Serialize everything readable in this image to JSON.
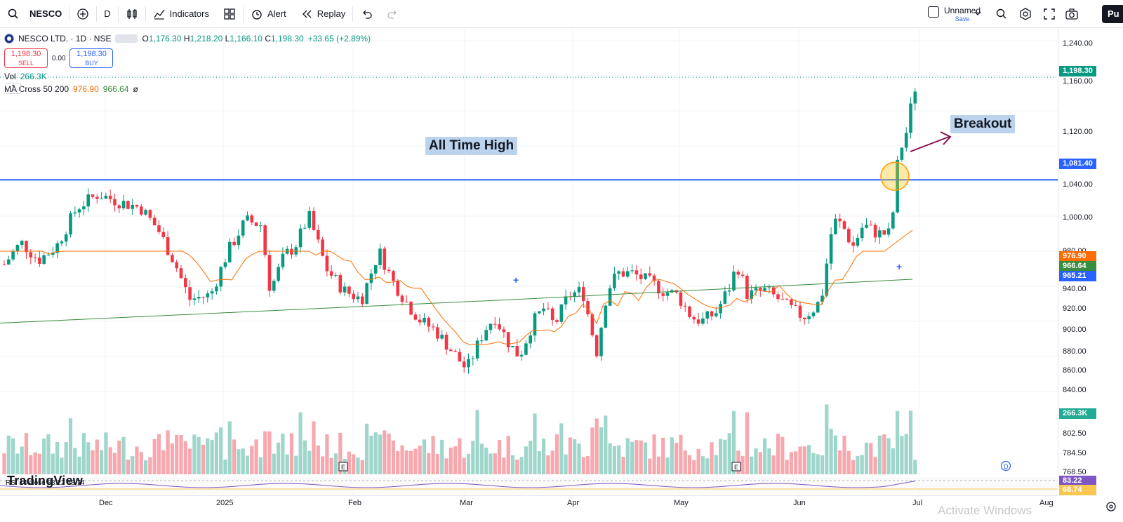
{
  "toolbar": {
    "symbol": "NESCO",
    "interval": "D",
    "indicators_label": "Indicators",
    "alert_label": "Alert",
    "replay_label": "Replay",
    "layout_name": "Unnamed",
    "save_label": "Save",
    "publish_label": "Pu"
  },
  "legend": {
    "title": "NESCO LTD. · 1D · NSE",
    "ohlc": [
      {
        "k": "O",
        "v": "1,176.30"
      },
      {
        "k": "H",
        "v": "1,218.20"
      },
      {
        "k": "L",
        "v": "1,166.10"
      },
      {
        "k": "C",
        "v": "1,198.30"
      }
    ],
    "change": "+33.65 (+2.89%)",
    "sell_price": "1,198.30",
    "sell_label": "SELL",
    "spread": "0.00",
    "buy_price": "1,198.30",
    "buy_label": "BUY",
    "vol_label": "Vol",
    "vol_value": "266.3K",
    "ma_label": "MA Cross 50 200",
    "ma50": "976.90",
    "ma200": "966.64",
    "ma_extra": "ø"
  },
  "annotations": {
    "ath": "All Time High",
    "breakout": "Breakout"
  },
  "price_axis": {
    "labels": [
      "1,240.00",
      "1,160.00",
      "1,120.00",
      "1,040.00",
      "1,000.00",
      "980.00",
      "940.00",
      "920.00",
      "900.00",
      "880.00",
      "860.00",
      "840.00",
      "802.50",
      "784.50",
      "768.50"
    ],
    "tags": [
      {
        "v": "1,198.30",
        "color": "#089981"
      },
      {
        "v": "1,081.40",
        "color": "#2962ff"
      },
      {
        "v": "976.90",
        "color": "#ff6d00"
      },
      {
        "v": "966.64",
        "color": "#388e3c"
      },
      {
        "v": "965.21",
        "color": "#2962ff"
      },
      {
        "v": "266.3K",
        "color": "#22ab94"
      },
      {
        "v": "83.22",
        "color": "#7e57c2"
      },
      {
        "v": "68.74",
        "color": "#f9c74f"
      }
    ]
  },
  "time_axis": [
    "Dec",
    "2025",
    "Feb",
    "Mar",
    "Apr",
    "May",
    "Jun",
    "Jul",
    "Aug"
  ],
  "rsi_label": "RSI 14 close  83.22  68.74",
  "tv_logo": "TradingView",
  "watermark": "Activate Windows",
  "colors": {
    "up": "#089981",
    "down": "#f23645",
    "ath_line": "#2962ff",
    "ma50": "#ff6d00",
    "ma200": "#388e3c"
  }
}
